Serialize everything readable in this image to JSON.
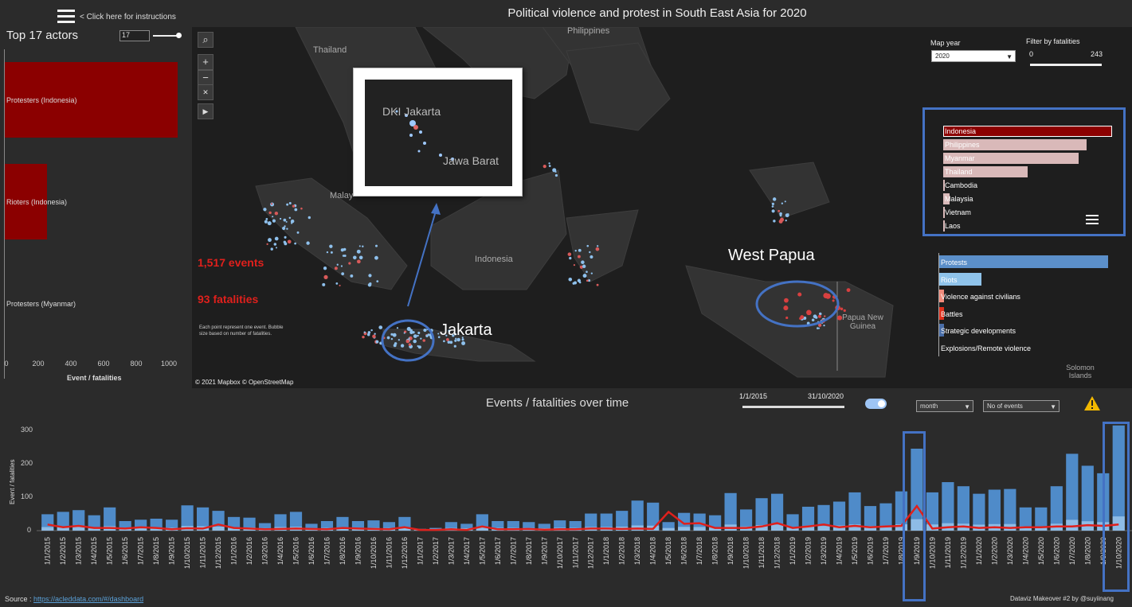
{
  "header": {
    "instructions": "< Click here for instructions",
    "title": "Political violence and protest in South East Asia for 2020"
  },
  "actors": {
    "title": "Top 17 actors",
    "count_input": "17",
    "bars": [
      {
        "label": "Protesters (Indonesia)",
        "value": 1060
      },
      {
        "label": "Rioters (Indonesia)",
        "value": 270
      },
      {
        "label": "Protesters (Myanmar)",
        "value": 0
      }
    ],
    "x_ticks": [
      "0",
      "200",
      "400",
      "600",
      "800",
      "1000"
    ],
    "x_axis_title": "Event / fatalities"
  },
  "map": {
    "kpi_events": "1,517 events",
    "kpi_fatalities": "93 fatalities",
    "note": "Each point represent one event. Bubble size based on number of fatalities.",
    "credit": "© 2021 Mapbox © OpenStreetMap",
    "labels": {
      "philippines": "Philippines",
      "thailand": "Thailand",
      "malaysia": "Malay",
      "indonesia": "Indonesia",
      "png": "Papua New Guinea",
      "solomon": "Solomon Islands"
    },
    "inset": {
      "label1": "DKI Jakarta",
      "label2": "Jawa Barat"
    },
    "callouts": {
      "jakarta": "Jakarta",
      "west_papua": "West Papua"
    },
    "controls": {
      "map_year_label": "Map year",
      "map_year_value": "2020",
      "filter_label": "Filter by fatalities",
      "filter_min": "0",
      "filter_max": "243"
    },
    "countries": [
      {
        "name": "Indonesia",
        "value": 1.0
      },
      {
        "name": "Philippines",
        "value": 0.85
      },
      {
        "name": "Myanmar",
        "value": 0.8
      },
      {
        "name": "Thailand",
        "value": 0.5
      },
      {
        "name": "Cambodia",
        "value": 0.01
      },
      {
        "name": "Malaysia",
        "value": 0.04
      },
      {
        "name": "Vietnam",
        "value": 0.01
      },
      {
        "name": "Laos",
        "value": 0.0
      }
    ],
    "event_types": [
      {
        "name": "Protests",
        "value": 1.0,
        "color": "#5b8fc9"
      },
      {
        "name": "Riots",
        "value": 0.25,
        "color": "#8fc3ea"
      },
      {
        "name": "Violence against civilians",
        "value": 0.03,
        "color": "#f08c7c"
      },
      {
        "name": "Battles",
        "value": 0.03,
        "color": "#e0301c"
      },
      {
        "name": "Strategic developments",
        "value": 0.03,
        "color": "#4a6ea8"
      },
      {
        "name": "Explosions/Remote violence",
        "value": 0.0,
        "color": "#2b2b2b"
      }
    ]
  },
  "timeline": {
    "title": "Events /  fatalities over time",
    "date_from": "1/1/2015",
    "date_to": "31/10/2020",
    "granularity": "month",
    "measure": "No of events",
    "y_title": "Event / fatalities",
    "y_ticks": [
      "300",
      "200",
      "100",
      "0"
    ],
    "source_label": "Source : ",
    "source_link": "https://acleddata.com/#/dashboard",
    "byline": "Dataviz Makeover #2 by @suyiinang"
  },
  "chart_data": {
    "type": "bar",
    "title": "Events /  fatalities over time",
    "ylabel": "Event / fatalities",
    "ylim": [
      0,
      320
    ],
    "categories": [
      "1/1/2015",
      "1/2/2015",
      "1/3/2015",
      "1/4/2015",
      "1/5/2015",
      "1/6/2015",
      "1/7/2015",
      "1/8/2015",
      "1/9/2015",
      "1/10/2015",
      "1/11/2015",
      "1/12/2015",
      "1/1/2016",
      "1/2/2016",
      "1/3/2016",
      "1/4/2016",
      "1/5/2016",
      "1/6/2016",
      "1/7/2016",
      "1/8/2016",
      "1/9/2016",
      "1/10/2016",
      "1/11/2016",
      "1/12/2016",
      "1/1/2017",
      "1/2/2017",
      "1/3/2017",
      "1/4/2017",
      "1/5/2017",
      "1/6/2017",
      "1/7/2017",
      "1/8/2017",
      "1/9/2017",
      "1/10/2017",
      "1/11/2017",
      "1/12/2017",
      "1/1/2018",
      "1/2/2018",
      "1/3/2018",
      "1/4/2018",
      "1/5/2018",
      "1/6/2018",
      "1/7/2018",
      "1/8/2018",
      "1/9/2018",
      "1/10/2018",
      "1/11/2018",
      "1/12/2018",
      "1/1/2019",
      "1/2/2019",
      "1/3/2019",
      "1/4/2019",
      "1/5/2019",
      "1/6/2019",
      "1/7/2019",
      "1/8/2019",
      "1/9/2019",
      "1/10/2019",
      "1/11/2019",
      "1/12/2019",
      "1/1/2020",
      "1/2/2020",
      "1/3/2020",
      "1/4/2020",
      "1/5/2020",
      "1/6/2020",
      "1/7/2020",
      "1/8/2020",
      "1/9/2020",
      "1/10/2020"
    ],
    "series": [
      {
        "values": [
          48,
          55,
          60,
          45,
          68,
          28,
          32,
          35,
          32,
          74,
          68,
          58,
          40,
          38,
          22,
          48,
          55,
          20,
          28,
          40,
          28,
          30,
          25,
          40,
          5,
          8,
          25,
          20,
          48,
          28,
          28,
          25,
          20,
          30,
          28,
          50,
          50,
          58,
          88,
          82,
          25,
          52,
          50,
          45,
          110,
          62,
          95,
          108,
          48,
          70,
          75,
          85,
          112,
          72,
          80,
          115,
          240,
          112,
          142,
          130,
          108,
          120,
          122,
          68,
          68,
          130,
          225,
          190,
          168,
          308
        ]
      },
      {
        "values": [
          18,
          10,
          14,
          8,
          8,
          6,
          10,
          8,
          4,
          7,
          6,
          18,
          8,
          6,
          4,
          5,
          6,
          5,
          4,
          8,
          6,
          5,
          4,
          10,
          2,
          2,
          4,
          2,
          12,
          4,
          4,
          5,
          3,
          4,
          4,
          6,
          6,
          5,
          6,
          5,
          55,
          20,
          22,
          8,
          8,
          8,
          12,
          22,
          8,
          12,
          18,
          10,
          14,
          10,
          12,
          14,
          72,
          6,
          10,
          12,
          8,
          10,
          8,
          10,
          10,
          12,
          12,
          16,
          14,
          18
        ]
      }
    ]
  }
}
